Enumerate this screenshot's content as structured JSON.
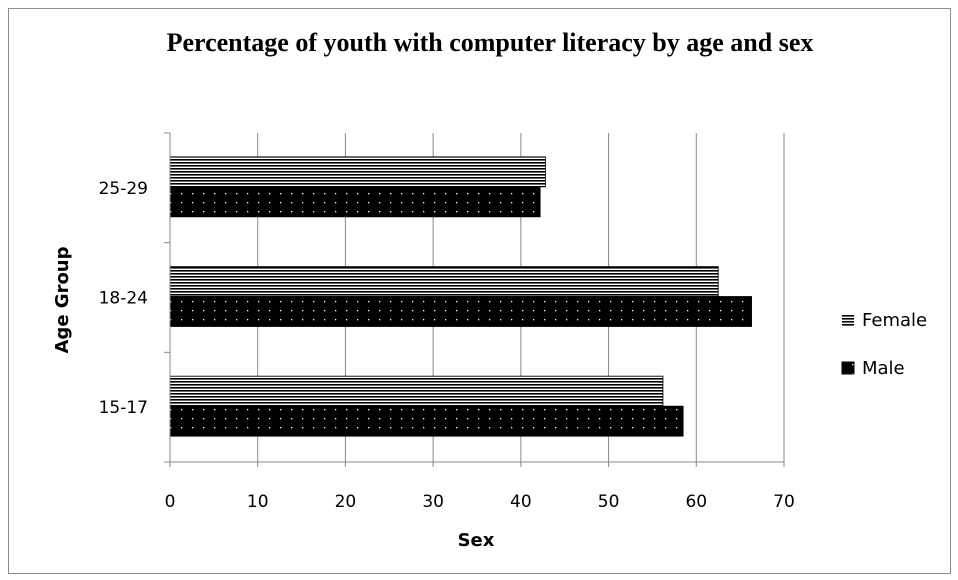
{
  "chart_data": {
    "type": "bar",
    "orientation": "horizontal",
    "title": "Percentage of youth with computer literacy by age and sex",
    "xlabel": "Sex",
    "ylabel": "Age Group",
    "categories": [
      "15-17",
      "18-24",
      "25-29"
    ],
    "series": [
      {
        "name": "Male",
        "values": [
          58.5,
          66.3,
          42.2
        ],
        "pattern": "dots",
        "color": "#000000"
      },
      {
        "name": "Female",
        "values": [
          56.2,
          62.5,
          42.8
        ],
        "pattern": "horizontal-lines",
        "color": "#000000"
      }
    ],
    "xlim": [
      0,
      70
    ],
    "xticks": [
      0,
      10,
      20,
      30,
      40,
      50,
      60,
      70
    ],
    "grid": true,
    "legend_position": "right",
    "legend_order": [
      "Female",
      "Male"
    ]
  }
}
